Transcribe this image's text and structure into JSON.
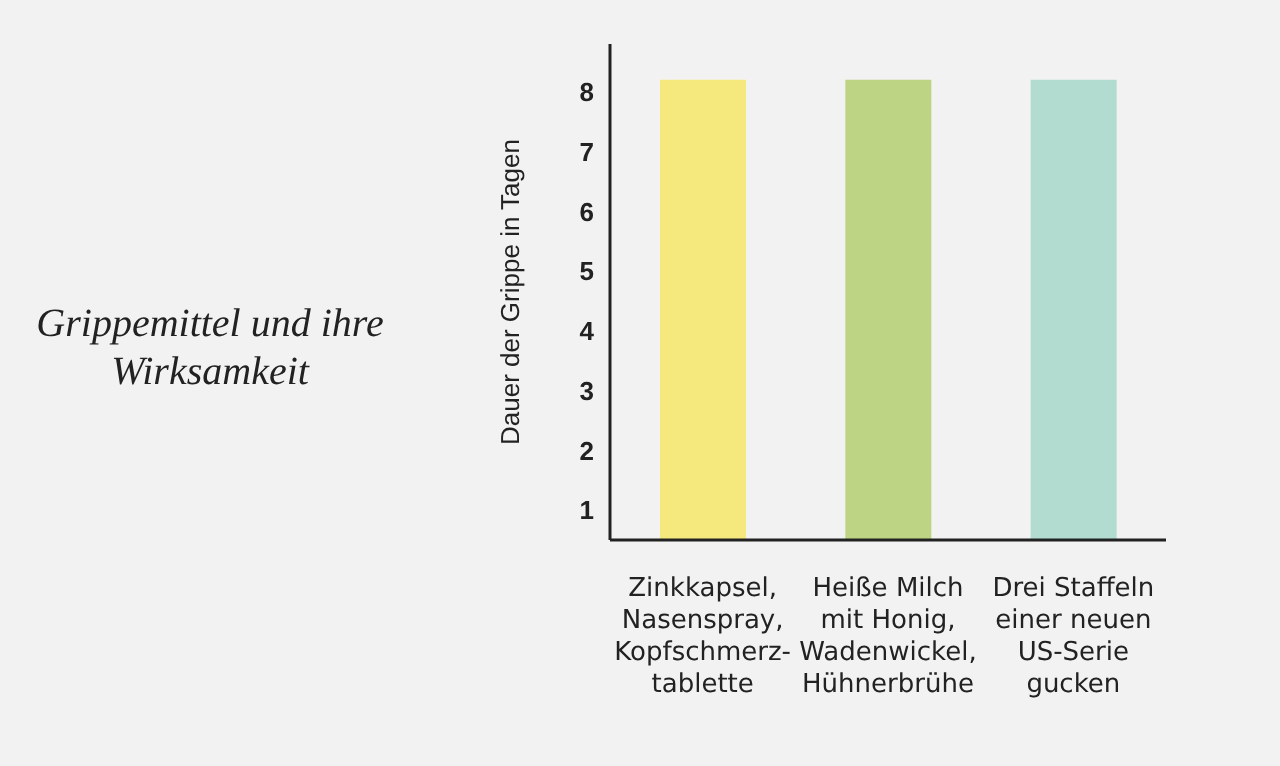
{
  "chart_data": {
    "type": "bar",
    "title": "Grippemittel und ihre Wirksamkeit",
    "ylabel": "Dauer der Grippe in Tagen",
    "categories": [
      "Zinkkapsel,\nNasenspray,\nKopfschmerz-\ntablette",
      "Heiße Milch\nmit Honig,\nWadenwickel,\nHühnerbrühe",
      "Drei Staffeln\neiner neuen\nUS-Serie\ngucken"
    ],
    "values": [
      8.2,
      8.2,
      8.2
    ],
    "colors": [
      "#f5e97e",
      "#bcd484",
      "#b2dcd0"
    ],
    "ylim": [
      0.5,
      8.8
    ],
    "yticks": [
      1,
      2,
      3,
      4,
      5,
      6,
      7,
      8
    ],
    "grid": false,
    "legend": false
  }
}
